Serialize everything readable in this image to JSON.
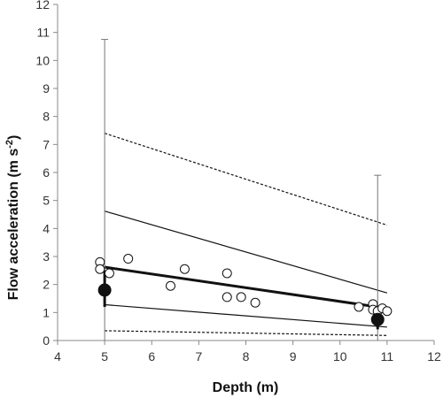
{
  "chart_data": {
    "type": "scatter",
    "xlabel": "Depth (m)",
    "ylabel": {
      "text": "Flow acceleration (m s",
      "superscript": "-2",
      "suffix": ")"
    },
    "xlim": [
      4,
      12
    ],
    "ylim": [
      0,
      12
    ],
    "x_ticks": [
      4,
      5,
      6,
      7,
      8,
      9,
      10,
      11,
      12
    ],
    "y_ticks": [
      0,
      1,
      2,
      3,
      4,
      5,
      6,
      7,
      8,
      9,
      10,
      11,
      12
    ],
    "grid": false,
    "legend": "none",
    "series": [
      {
        "marker": "open-circle",
        "points": [
          [
            4.9,
            2.8
          ],
          [
            4.9,
            2.55
          ],
          [
            5.1,
            2.4
          ],
          [
            5.5,
            2.92
          ],
          [
            6.4,
            1.95
          ],
          [
            6.7,
            2.55
          ],
          [
            7.6,
            2.4
          ],
          [
            7.6,
            1.55
          ],
          [
            7.9,
            1.55
          ],
          [
            8.2,
            1.35
          ],
          [
            10.4,
            1.2
          ],
          [
            10.7,
            1.3
          ],
          [
            10.7,
            1.1
          ],
          [
            10.8,
            1.05
          ],
          [
            10.9,
            1.15
          ],
          [
            11.0,
            1.05
          ]
        ]
      },
      {
        "marker": "filled-circle",
        "points": [
          [
            5.0,
            1.8
          ],
          [
            10.8,
            0.75
          ]
        ],
        "thick_error_bars": [
          [
            1.2,
            2.5
          ],
          [
            0.4,
            1.2
          ]
        ],
        "thin_error_bars": [
          [
            0.0,
            10.75
          ],
          [
            0.0,
            5.9
          ]
        ]
      }
    ],
    "lines": [
      {
        "style": "solid-thick",
        "from": [
          5.0,
          2.62
        ],
        "to": [
          11.0,
          1.15
        ]
      },
      {
        "style": "solid-thin",
        "from": [
          5.0,
          4.62
        ],
        "to": [
          11.0,
          1.7
        ]
      },
      {
        "style": "solid-thin",
        "from": [
          5.0,
          1.28
        ],
        "to": [
          11.0,
          0.48
        ]
      },
      {
        "style": "dotted",
        "from": [
          5.0,
          7.4
        ],
        "to": [
          11.0,
          4.12
        ]
      },
      {
        "style": "dotted",
        "from": [
          5.0,
          0.35
        ],
        "to": [
          11.0,
          0.18
        ]
      }
    ],
    "colors": {
      "axis": "#888888",
      "marks": "#111111",
      "error_bars": "#777777"
    }
  }
}
